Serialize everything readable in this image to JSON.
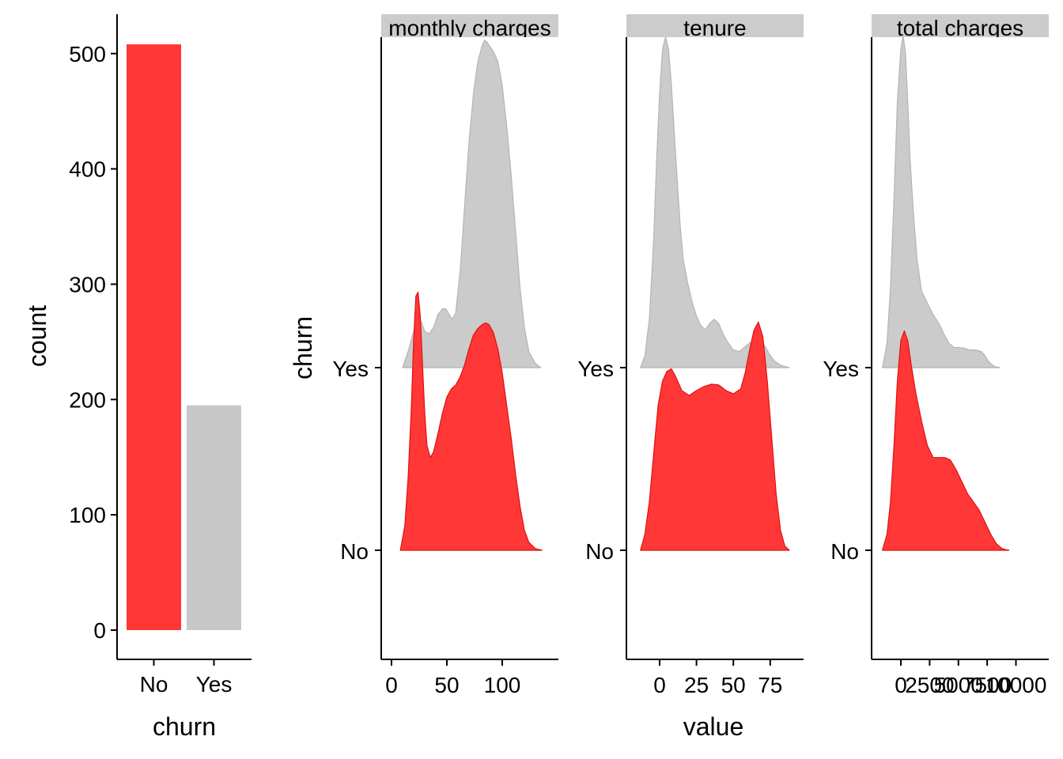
{
  "colors": {
    "no": "#ff3333",
    "yes": "#c8c8c8",
    "strip": "#cccccc",
    "axis": "#000000"
  },
  "chart_data": [
    {
      "type": "bar",
      "categories": [
        "No",
        "Yes"
      ],
      "values": [
        508,
        195
      ],
      "xlabel": "churn",
      "ylabel": "count",
      "ylim": [
        0,
        540
      ],
      "yticks": [
        0,
        100,
        200,
        300,
        400,
        500
      ],
      "ytick_labels": [
        "0",
        "100",
        "200",
        "300",
        "400",
        "500"
      ],
      "grid": false
    },
    {
      "type": "area",
      "subtype": "ridgeline",
      "ylabel": "churn",
      "xlabel": "value",
      "rows": [
        "Yes",
        "No"
      ],
      "ytick_labels": [
        "Yes",
        "No"
      ],
      "grid": false,
      "panels": [
        {
          "strip": "monthly_charges",
          "xlim": [
            -7,
            148
          ],
          "xticks": [
            0,
            50,
            100
          ],
          "xtick_labels": [
            "0",
            "50",
            "100"
          ],
          "series": [
            {
              "name": "Yes",
              "x": [
                10,
                15,
                18,
                21,
                24,
                27,
                30,
                34,
                38,
                42,
                46,
                49,
                52,
                55,
                58,
                62,
                66,
                70,
                74,
                78,
                82,
                84,
                86,
                88,
                92,
                96,
                100,
                104,
                108,
                112,
                116,
                120,
                124,
                130,
                135
              ],
              "y": [
                0,
                0.2,
                0.35,
                0.5,
                0.6,
                0.57,
                0.45,
                0.42,
                0.5,
                0.66,
                0.73,
                0.73,
                0.66,
                0.6,
                0.68,
                1.2,
                2.0,
                2.8,
                3.4,
                3.8,
                4.0,
                4.06,
                4.04,
                4.0,
                3.92,
                3.8,
                3.5,
                3.0,
                2.4,
                1.7,
                1.0,
                0.5,
                0.2,
                0.05,
                0
              ]
            },
            {
              "name": "No",
              "x": [
                8,
                12,
                15,
                18,
                20,
                22,
                24,
                26,
                28,
                30,
                32,
                35,
                38,
                42,
                46,
                50,
                54,
                58,
                62,
                66,
                70,
                74,
                78,
                82,
                85,
                88,
                92,
                96,
                100,
                104,
                108,
                112,
                116,
                120,
                124,
                130,
                136
              ],
              "y": [
                0,
                0.3,
                0.9,
                1.8,
                2.6,
                3.15,
                3.2,
                2.9,
                2.3,
                1.7,
                1.3,
                1.15,
                1.22,
                1.45,
                1.7,
                1.9,
                2.0,
                2.05,
                2.15,
                2.3,
                2.5,
                2.67,
                2.75,
                2.8,
                2.82,
                2.8,
                2.7,
                2.5,
                2.2,
                1.8,
                1.4,
                0.95,
                0.55,
                0.25,
                0.1,
                0.02,
                0
              ]
            }
          ]
        },
        {
          "strip": "tenure",
          "xlim": [
            -15,
            95
          ],
          "xticks": [
            0,
            25,
            50,
            75
          ],
          "xtick_labels": [
            "0",
            "25",
            "50",
            "75"
          ],
          "series": [
            {
              "name": "Yes",
              "x": [
                -13,
                -10,
                -7,
                -4,
                -2,
                0,
                2,
                4,
                6,
                8,
                10,
                12,
                14,
                16,
                19,
                22,
                25,
                28,
                31,
                34,
                37,
                40,
                43,
                46,
                50,
                54,
                58,
                62,
                66,
                69,
                72,
                75,
                78,
                82,
                86,
                88
              ],
              "y": [
                0,
                0.15,
                0.6,
                1.6,
                2.6,
                3.4,
                3.95,
                4.1,
                3.95,
                3.5,
                2.9,
                2.3,
                1.75,
                1.35,
                1.05,
                0.82,
                0.64,
                0.52,
                0.47,
                0.55,
                0.6,
                0.55,
                0.42,
                0.32,
                0.22,
                0.2,
                0.26,
                0.32,
                0.36,
                0.33,
                0.25,
                0.15,
                0.08,
                0.03,
                0.01,
                0
              ]
            },
            {
              "name": "No",
              "x": [
                -13,
                -10,
                -7,
                -4,
                -1,
                2,
                5,
                8,
                11,
                15,
                20,
                25,
                30,
                35,
                40,
                45,
                50,
                55,
                58,
                61,
                64,
                67,
                70,
                73,
                76,
                79,
                82,
                85,
                88
              ],
              "y": [
                0,
                0.2,
                0.6,
                1.2,
                1.8,
                2.1,
                2.22,
                2.25,
                2.15,
                1.98,
                1.92,
                1.98,
                2.03,
                2.06,
                2.05,
                1.98,
                1.94,
                2.0,
                2.2,
                2.48,
                2.73,
                2.83,
                2.65,
                2.1,
                1.4,
                0.7,
                0.25,
                0.05,
                0
              ]
            }
          ]
        },
        {
          "strip": "total_charges",
          "xlim": [
            -2200,
            10200
          ],
          "xticks": [
            0,
            2500,
            5000,
            7500,
            10000
          ],
          "xtick_labels": [
            "0",
            "2500",
            "5000",
            "7500",
            "10000"
          ],
          "series": [
            {
              "name": "Yes",
              "x": [
                -1600,
                -1200,
                -900,
                -600,
                -300,
                0,
                200,
                400,
                600,
                800,
                1100,
                1400,
                1800,
                2300,
                2800,
                3300,
                3800,
                4200,
                4600,
                5000,
                5500,
                6000,
                6500,
                7000,
                7300,
                7600,
                7900,
                8200,
                8600
              ],
              "y": [
                0,
                0.3,
                1.0,
                2.1,
                3.3,
                3.95,
                4.12,
                3.9,
                3.3,
                2.6,
                1.9,
                1.35,
                0.95,
                0.8,
                0.66,
                0.55,
                0.4,
                0.3,
                0.25,
                0.25,
                0.24,
                0.22,
                0.22,
                0.2,
                0.15,
                0.08,
                0.04,
                0.01,
                0
              ]
            },
            {
              "name": "No",
              "x": [
                -1600,
                -1200,
                -900,
                -600,
                -300,
                0,
                300,
                600,
                900,
                1300,
                1800,
                2300,
                2800,
                3300,
                3800,
                4300,
                4800,
                5300,
                5800,
                6300,
                6800,
                7300,
                7800,
                8300,
                8800,
                9200,
                9400
              ],
              "y": [
                0,
                0.2,
                0.6,
                1.3,
                2.1,
                2.6,
                2.72,
                2.6,
                2.3,
                1.95,
                1.6,
                1.3,
                1.15,
                1.15,
                1.15,
                1.12,
                1.0,
                0.85,
                0.7,
                0.6,
                0.5,
                0.35,
                0.2,
                0.08,
                0.02,
                0.005,
                0
              ]
            }
          ]
        }
      ]
    }
  ]
}
